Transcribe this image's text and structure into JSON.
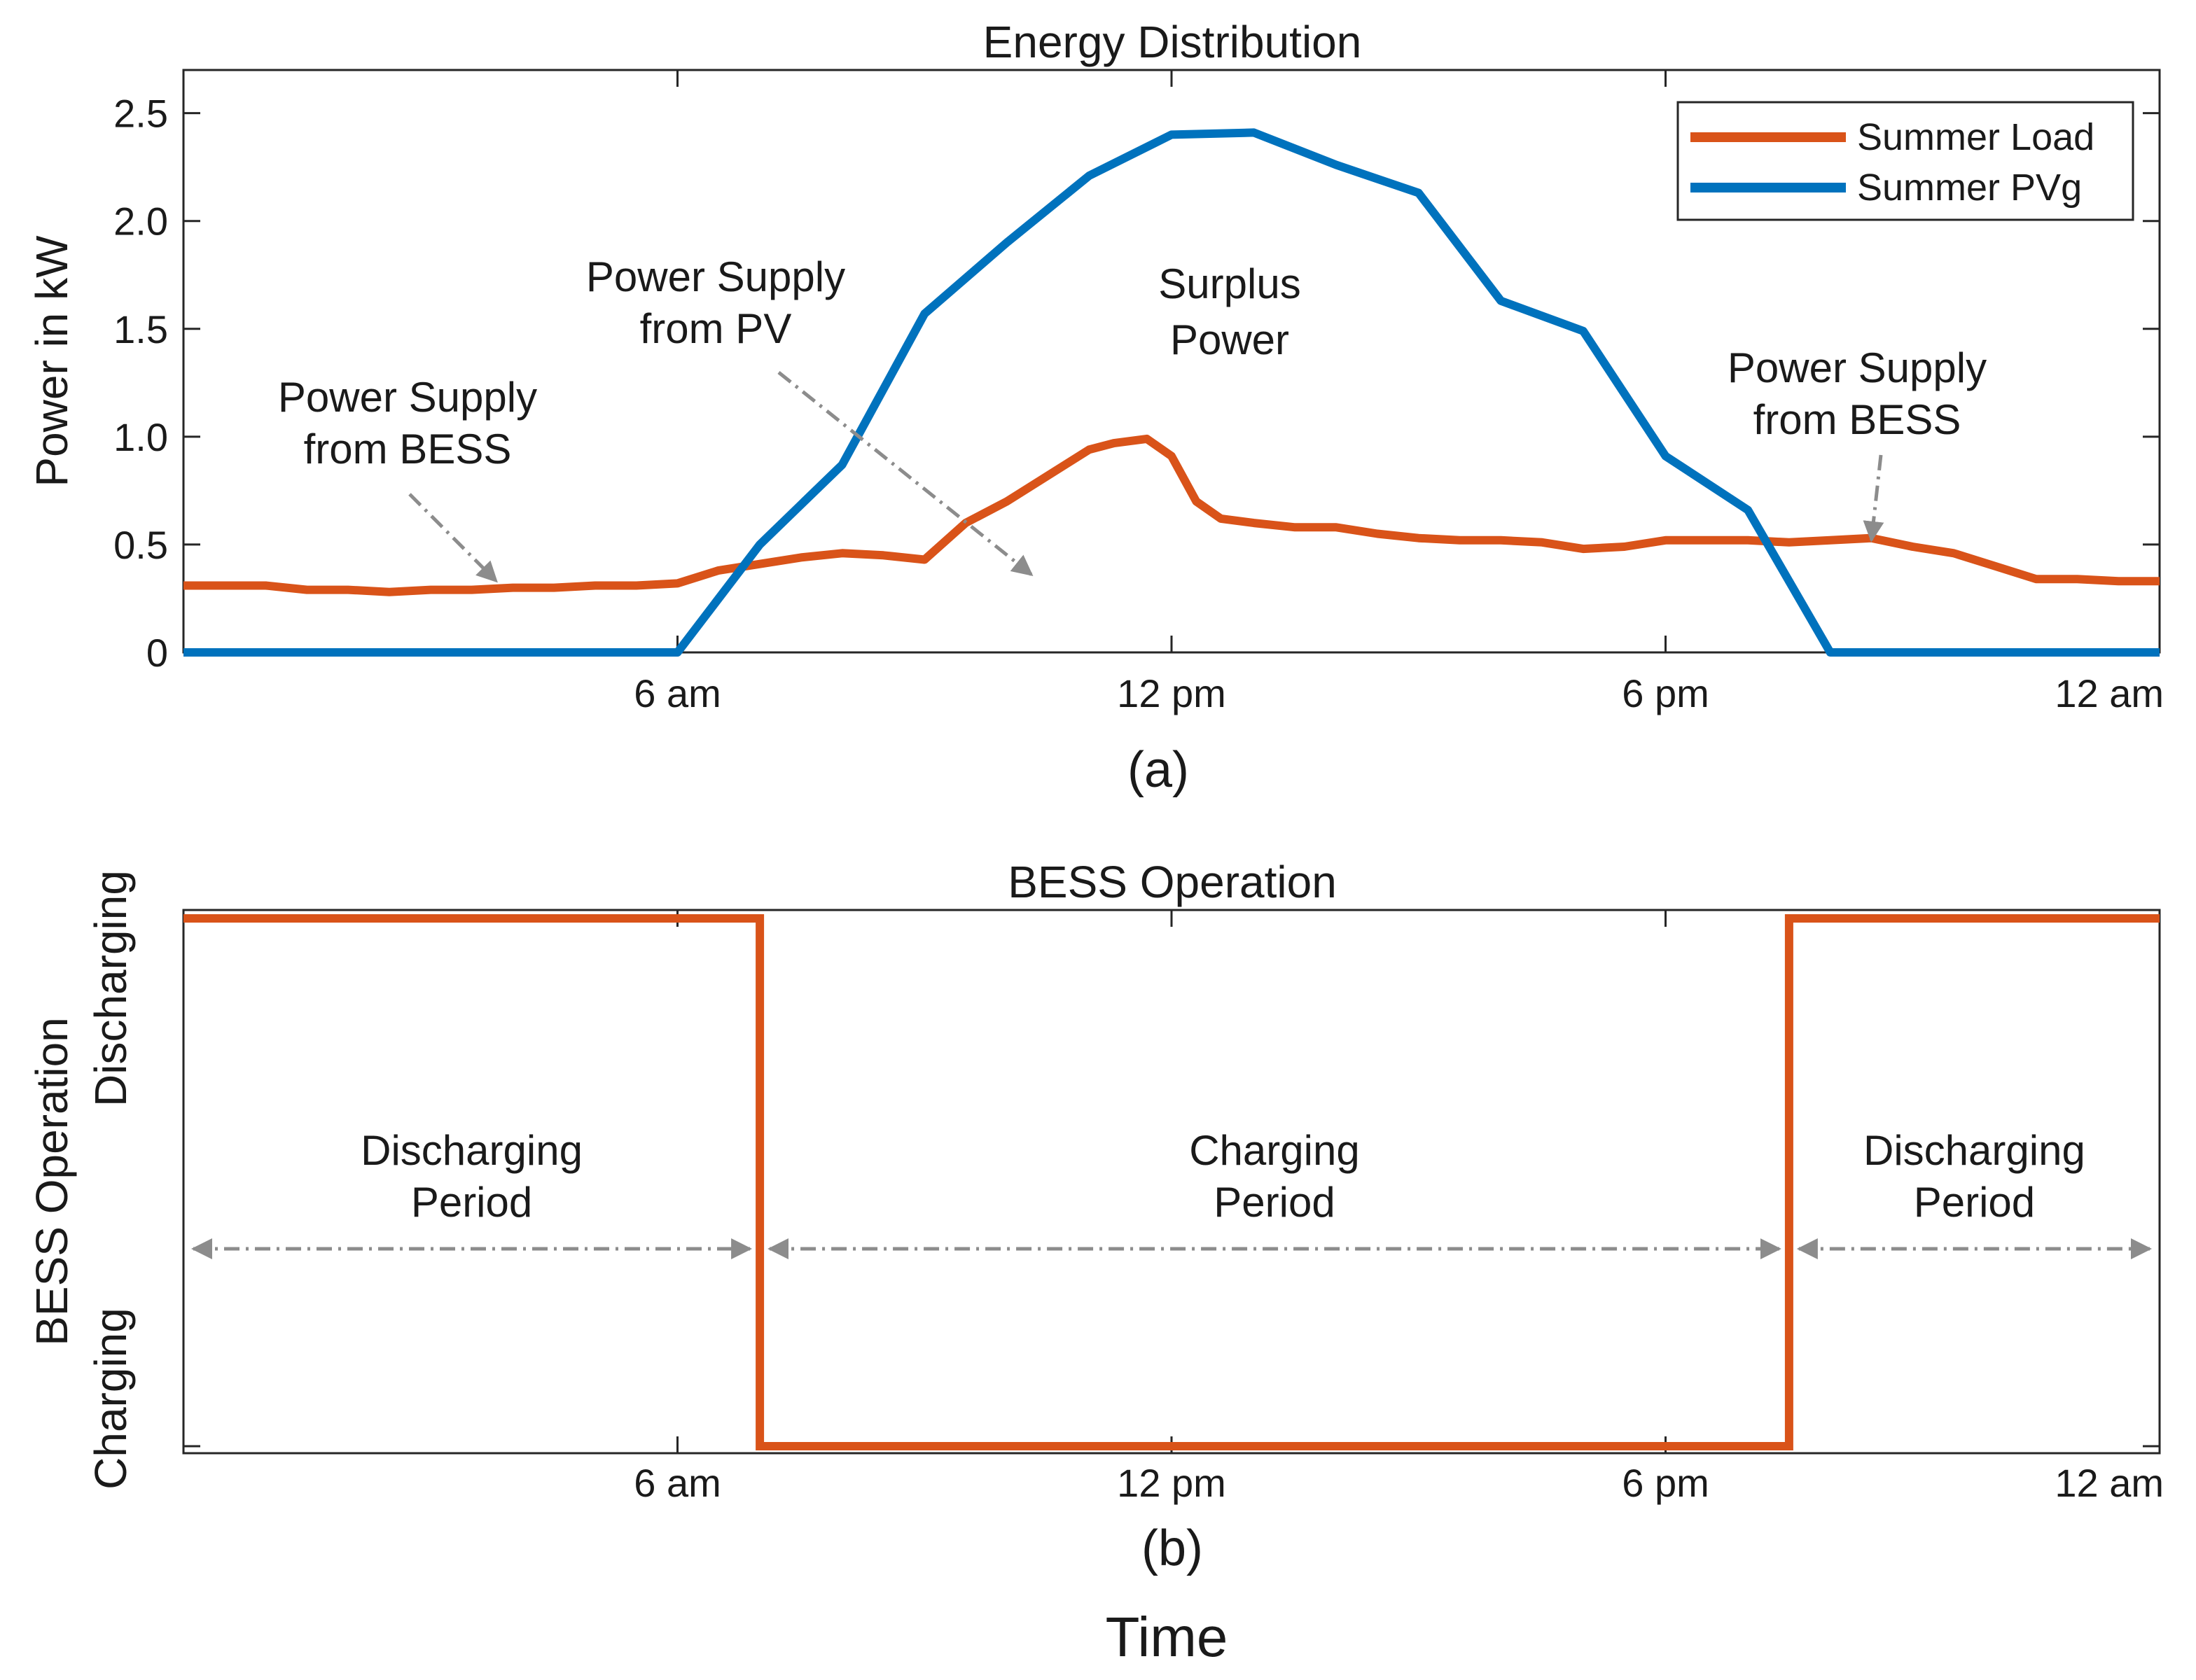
{
  "chart_data": [
    {
      "type": "line",
      "panel_label": "(a)",
      "title": "Energy Distribution",
      "ylabel": "Power in kW",
      "xlabel": "",
      "xlim": [
        0,
        24
      ],
      "ylim": [
        0,
        2.7
      ],
      "x_ticks": [
        {
          "value": 6,
          "label": "6 am"
        },
        {
          "value": 12,
          "label": "12 pm"
        },
        {
          "value": 18,
          "label": "6 pm"
        },
        {
          "value": 24,
          "label": "12 am"
        }
      ],
      "y_ticks": [
        {
          "value": 0,
          "label": "0"
        },
        {
          "value": 0.5,
          "label": "0.5"
        },
        {
          "value": 1.0,
          "label": "1.0"
        },
        {
          "value": 1.5,
          "label": "1.5"
        },
        {
          "value": 2.0,
          "label": "2.0"
        },
        {
          "value": 2.5,
          "label": "2.5"
        }
      ],
      "legend_position": "top-right",
      "series": [
        {
          "name": "Summer Load",
          "color": "#d95319",
          "x": [
            0,
            1,
            1.5,
            2,
            2.5,
            3,
            3.5,
            4,
            4.5,
            5,
            5.5,
            6,
            6.5,
            7,
            7.5,
            8,
            8.5,
            9,
            9.5,
            10,
            10.5,
            11,
            11.3,
            11.7,
            12,
            12.3,
            12.6,
            13,
            13.5,
            14,
            14.5,
            15,
            15.5,
            16,
            16.5,
            17,
            17.5,
            18,
            18.5,
            19,
            19.5,
            20,
            20.5,
            21,
            21.5,
            22,
            22.5,
            23,
            23.5,
            24
          ],
          "values": [
            0.31,
            0.31,
            0.29,
            0.29,
            0.28,
            0.29,
            0.29,
            0.3,
            0.3,
            0.31,
            0.31,
            0.32,
            0.38,
            0.41,
            0.44,
            0.46,
            0.45,
            0.43,
            0.6,
            0.7,
            0.82,
            0.94,
            0.97,
            0.99,
            0.91,
            0.7,
            0.62,
            0.6,
            0.58,
            0.58,
            0.55,
            0.53,
            0.52,
            0.52,
            0.51,
            0.48,
            0.49,
            0.52,
            0.52,
            0.52,
            0.51,
            0.52,
            0.53,
            0.49,
            0.46,
            0.4,
            0.34,
            0.34,
            0.33,
            0.33
          ]
        },
        {
          "name": "Summer PVg",
          "color": "#0072bd",
          "x": [
            0,
            6,
            7,
            8,
            9,
            10,
            11,
            12,
            13,
            14,
            15,
            16,
            17,
            18,
            19,
            20,
            21,
            22,
            24
          ],
          "values": [
            0,
            0,
            0.5,
            0.87,
            1.57,
            1.9,
            2.21,
            2.4,
            2.41,
            2.26,
            2.13,
            1.63,
            1.49,
            0.91,
            0.66,
            0,
            0,
            0,
            0
          ]
        }
      ],
      "annotations": [
        {
          "id": "bess-left",
          "lines": [
            "Power Supply",
            "from BESS"
          ],
          "arrow_to": {
            "x": 3.8,
            "y": 0.33
          }
        },
        {
          "id": "pv",
          "lines": [
            "Power Supply",
            "from PV"
          ],
          "arrow_to": {
            "x": 10.3,
            "y": 0.36
          }
        },
        {
          "id": "surplus",
          "lines": [
            "Surplus",
            "Power"
          ]
        },
        {
          "id": "bess-right",
          "lines": [
            "Power Supply",
            "from BESS"
          ],
          "arrow_to": {
            "x": 20.5,
            "y": 0.52
          }
        }
      ]
    },
    {
      "type": "line",
      "panel_label": "(b)",
      "title": "BESS Operation",
      "ylabel": "BESS Operation",
      "xlabel": "Time",
      "xlim": [
        0,
        24
      ],
      "y_categories": [
        "Charging",
        "Discharging"
      ],
      "x_ticks": [
        {
          "value": 6,
          "label": "6 am"
        },
        {
          "value": 12,
          "label": "12 pm"
        },
        {
          "value": 18,
          "label": "6 pm"
        },
        {
          "value": 24,
          "label": "12 am"
        }
      ],
      "series": [
        {
          "name": "BESS State",
          "color": "#d95319",
          "x": [
            0,
            7,
            7,
            19.5,
            19.5,
            24
          ],
          "values": [
            "Discharging",
            "Discharging",
            "Charging",
            "Charging",
            "Discharging",
            "Discharging"
          ]
        }
      ],
      "periods": [
        {
          "lines": [
            "Discharging",
            "Period"
          ],
          "start": 0,
          "end": 7
        },
        {
          "lines": [
            "Charging",
            "Period"
          ],
          "start": 7,
          "end": 19.5
        },
        {
          "lines": [
            "Discharging",
            "Period"
          ],
          "start": 19.5,
          "end": 24
        }
      ]
    }
  ]
}
